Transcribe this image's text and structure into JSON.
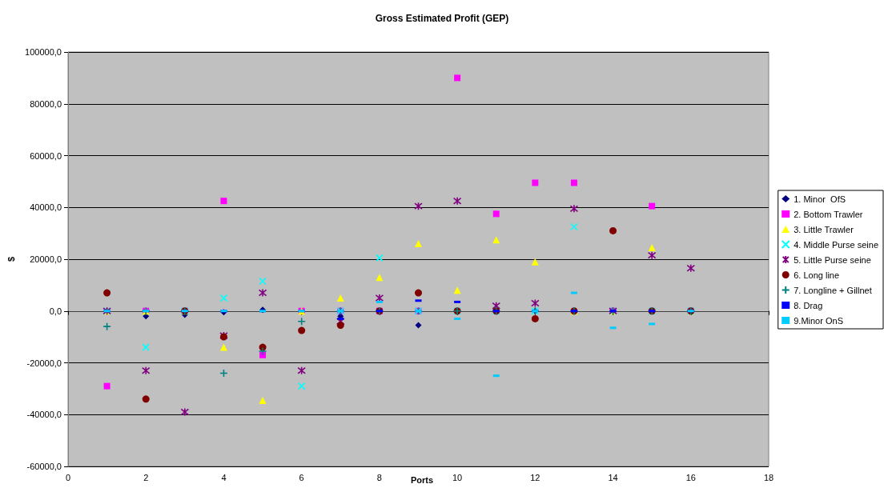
{
  "chart_data": {
    "type": "scatter",
    "title": "Gross Estimated Profit (GEP)",
    "xlabel": "Ports",
    "ylabel": "$",
    "x": [
      1,
      2,
      3,
      4,
      5,
      6,
      7,
      8,
      9,
      10,
      11,
      12,
      13,
      14,
      15,
      16
    ],
    "xlim": [
      0,
      18
    ],
    "xticks": [
      0,
      2,
      4,
      6,
      8,
      10,
      12,
      14,
      16,
      18
    ],
    "ylim": [
      -60000,
      100000
    ],
    "yticks": [
      {
        "value": -60000,
        "label": "-60000,0"
      },
      {
        "value": -40000,
        "label": "-40000,0"
      },
      {
        "value": -20000,
        "label": "-20000,0"
      },
      {
        "value": 0,
        "label": "0,0"
      },
      {
        "value": 20000,
        "label": "20000,0"
      },
      {
        "value": 40000,
        "label": "40000,0"
      },
      {
        "value": 60000,
        "label": "60000,0"
      },
      {
        "value": 80000,
        "label": "80000,0"
      },
      {
        "value": 100000,
        "label": "100000,0"
      }
    ],
    "grid": "y",
    "legend": "right",
    "series": [
      {
        "name": "1. Minor  OfS",
        "color": "#000080",
        "marker": "diamond",
        "values": [
          0,
          -2000,
          -1500,
          -500,
          500,
          null,
          -2000,
          null,
          -5500,
          null,
          null,
          0,
          null,
          null,
          null,
          null
        ]
      },
      {
        "name": "2. Bottom Trawler",
        "color": "#ff00ff",
        "marker": "square",
        "values": [
          -29000,
          0,
          0,
          42500,
          -17000,
          0,
          0,
          0,
          0,
          90000,
          37500,
          49500,
          49500,
          0,
          40500,
          0
        ]
      },
      {
        "name": "3. Little Trawler",
        "color": "#ffff00",
        "marker": "triangle",
        "values": [
          0,
          0,
          0,
          -14000,
          -34500,
          0,
          5000,
          13000,
          26000,
          8000,
          27500,
          19000,
          0,
          0,
          24500,
          0
        ]
      },
      {
        "name": "4. Middle Purse seine",
        "color": "#00ffff",
        "marker": "cross",
        "values": [
          0,
          -14000,
          0,
          5000,
          11500,
          -29000,
          0,
          20500,
          0,
          0,
          0,
          0,
          32500,
          0,
          0,
          0
        ]
      },
      {
        "name": "5. Little Purse seine",
        "color": "#800080",
        "marker": "cross",
        "values": [
          0,
          -23000,
          -39000,
          -9500,
          7000,
          -23000,
          -4000,
          5000,
          40500,
          42500,
          2000,
          3000,
          39500,
          0,
          21500,
          16500
        ]
      },
      {
        "name": "6. Long line",
        "color": "#800000",
        "marker": "circle",
        "values": [
          7000,
          -34000,
          0,
          -10000,
          -14000,
          -7500,
          -5500,
          0,
          7000,
          0,
          0,
          -3000,
          0,
          31000,
          0,
          0
        ]
      },
      {
        "name": "7. Longline + Gillnet",
        "color": "#008080",
        "marker": "cross",
        "values": [
          -6000,
          0,
          0,
          -24000,
          -15500,
          -4000,
          0,
          0,
          0,
          0,
          0,
          0,
          0,
          0,
          0,
          0
        ]
      },
      {
        "name": "8. Drag",
        "color": "#0000ff",
        "values": [
          0,
          0,
          0,
          0,
          0,
          0,
          -3000,
          0,
          4000,
          3500,
          0,
          0,
          0,
          0,
          0,
          0
        ]
      },
      {
        "name": "9.Minor OnS",
        "color": "#00ccff",
        "values": [
          0,
          0,
          0,
          0,
          0,
          0,
          0,
          3500,
          0,
          -3000,
          -25000,
          0,
          7000,
          -6500,
          -5000,
          0
        ]
      }
    ]
  }
}
